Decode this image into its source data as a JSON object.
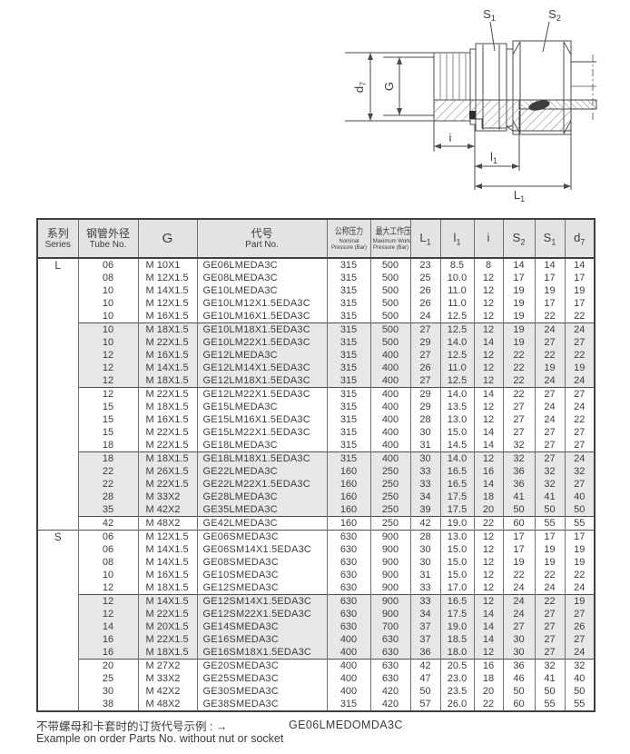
{
  "colors": {
    "header_bg": "#e3e3e3",
    "shaded_row_bg": "#e7e7e7",
    "border_dark": "#3f3f3f",
    "text": "#3c3c3c"
  },
  "drawing": {
    "labels": {
      "s1": {
        "base": "S",
        "sub": "1"
      },
      "s2": {
        "base": "S",
        "sub": "2"
      },
      "d7": {
        "base": "d",
        "sub": "7"
      },
      "g": "G",
      "i": "i",
      "l1": {
        "base": "l",
        "sub": "1"
      },
      "L1": {
        "base": "L",
        "sub": "1"
      }
    }
  },
  "table": {
    "headers": {
      "series": {
        "zh": "系列",
        "en": "Series"
      },
      "tube": {
        "zh": "钢管外径",
        "en": "Tube No."
      },
      "g": "G",
      "part": {
        "zh": "代号",
        "en": "Part No."
      },
      "nominal": {
        "zh": "公称压力",
        "en1": "Nominal",
        "en2": "Pressure (Bar)"
      },
      "max": {
        "zh": "最大工作压力",
        "en1": "Maximum Working",
        "en2": "Pressure (Bar)"
      },
      "dims": [
        {
          "base": "L",
          "sub": "1"
        },
        {
          "base": "l",
          "sub": "1"
        },
        {
          "base": "i",
          "sub": ""
        },
        {
          "base": "S",
          "sub": "2"
        },
        {
          "base": "S",
          "sub": "1"
        },
        {
          "base": "d",
          "sub": "7"
        }
      ]
    },
    "sections": [
      {
        "series": "L",
        "groups": [
          {
            "shaded": false,
            "rows": [
              [
                "06",
                "M 10X1",
                "GE06LMEDA3C",
                "315",
                "500",
                "23",
                "8.5",
                "8",
                "14",
                "14",
                "14"
              ],
              [
                "08",
                "M 12X1.5",
                "GE08LMEDA3C",
                "315",
                "500",
                "25",
                "10.0",
                "12",
                "17",
                "17",
                "17"
              ],
              [
                "10",
                "M 14X1.5",
                "GE10LMEDA3C",
                "315",
                "500",
                "26",
                "11.0",
                "12",
                "19",
                "19",
                "19"
              ],
              [
                "10",
                "M 12X1.5",
                "GE10LM12X1.5EDA3C",
                "315",
                "500",
                "26",
                "11.0",
                "12",
                "19",
                "17",
                "17"
              ],
              [
                "10",
                "M 16X1.5",
                "GE10LM16X1.5EDA3C",
                "315",
                "500",
                "24",
                "12.5",
                "12",
                "19",
                "22",
                "22"
              ]
            ]
          },
          {
            "shaded": true,
            "rows": [
              [
                "10",
                "M 18X1.5",
                "GE10LM18X1.5EDA3C",
                "315",
                "500",
                "27",
                "12.5",
                "12",
                "19",
                "24",
                "24"
              ],
              [
                "10",
                "M 22X1.5",
                "GE10LM22X1.5EDA3C",
                "315",
                "500",
                "29",
                "14.0",
                "14",
                "19",
                "27",
                "27"
              ],
              [
                "12",
                "M 16X1.5",
                "GE12LMEDA3C",
                "315",
                "400",
                "27",
                "12.5",
                "12",
                "22",
                "22",
                "22"
              ],
              [
                "12",
                "M 14X1.5",
                "GE12LM14X1.5EDA3C",
                "315",
                "400",
                "26",
                "11.0",
                "12",
                "22",
                "19",
                "19"
              ],
              [
                "12",
                "M 18X1.5",
                "GE12LM18X1.5EDA3C",
                "315",
                "400",
                "27",
                "12.5",
                "12",
                "22",
                "24",
                "24"
              ]
            ]
          },
          {
            "shaded": false,
            "rows": [
              [
                "12",
                "M 22X1.5",
                "GE12LM22X1.5EDA3C",
                "315",
                "400",
                "29",
                "14.0",
                "14",
                "22",
                "27",
                "27"
              ],
              [
                "15",
                "M 18X1.5",
                "GE15LMEDA3C",
                "315",
                "400",
                "29",
                "13.5",
                "12",
                "27",
                "24",
                "24"
              ],
              [
                "15",
                "M 16X1.5",
                "GE15LM16X1.5EDA3C",
                "315",
                "400",
                "28",
                "13.0",
                "12",
                "27",
                "24",
                "22"
              ],
              [
                "15",
                "M 22X1.5",
                "GE15LM22X1.5EDA3C",
                "315",
                "400",
                "30",
                "15.0",
                "14",
                "27",
                "27",
                "27"
              ],
              [
                "18",
                "M 22X1.5",
                "GE18LMEDA3C",
                "315",
                "400",
                "31",
                "14.5",
                "14",
                "32",
                "27",
                "27"
              ]
            ]
          },
          {
            "shaded": true,
            "rows": [
              [
                "18",
                "M 18X1.5",
                "GE18LM18X1.5EDA3C",
                "315",
                "400",
                "30",
                "14.0",
                "12",
                "32",
                "27",
                "24"
              ],
              [
                "22",
                "M 26X1.5",
                "GE22LMEDA3C",
                "160",
                "250",
                "33",
                "16.5",
                "16",
                "36",
                "32",
                "32"
              ],
              [
                "22",
                "M 22X1.5",
                "GE22LM22X1.5EDA3C",
                "160",
                "250",
                "33",
                "16.5",
                "14",
                "36",
                "32",
                "27"
              ],
              [
                "28",
                "M 33X2",
                "GE28LMEDA3C",
                "160",
                "250",
                "34",
                "17.5",
                "18",
                "41",
                "41",
                "40"
              ],
              [
                "35",
                "M 42X2",
                "GE35LMEDA3C",
                "160",
                "250",
                "39",
                "17.5",
                "20",
                "50",
                "50",
                "50"
              ]
            ]
          },
          {
            "shaded": false,
            "rows": [
              [
                "42",
                "M 48X2",
                "GE42LMEDA3C",
                "160",
                "250",
                "42",
                "19.0",
                "22",
                "60",
                "55",
                "55"
              ]
            ]
          }
        ]
      },
      {
        "series": "S",
        "groups": [
          {
            "shaded": false,
            "rows": [
              [
                "06",
                "M 12X1.5",
                "GE06SMEDA3C",
                "630",
                "900",
                "28",
                "13.0",
                "12",
                "17",
                "17",
                "17"
              ],
              [
                "06",
                "M 14X1.5",
                "GE06SM14X1.5EDA3C",
                "630",
                "900",
                "30",
                "15.0",
                "12",
                "17",
                "19",
                "19"
              ],
              [
                "08",
                "M 14X1.5",
                "GE08SMEDA3C",
                "630",
                "900",
                "30",
                "15.0",
                "12",
                "19",
                "19",
                "19"
              ],
              [
                "10",
                "M 16X1.5",
                "GE10SMEDA3C",
                "630",
                "900",
                "31",
                "15.0",
                "12",
                "22",
                "22",
                "22"
              ],
              [
                "12",
                "M 18X1.5",
                "GE12SMEDA3C",
                "630",
                "900",
                "33",
                "17.0",
                "12",
                "24",
                "24",
                "24"
              ]
            ]
          },
          {
            "shaded": true,
            "rows": [
              [
                "12",
                "M 14X1.5",
                "GE12SM14X1.5EDA3C",
                "630",
                "900",
                "33",
                "16.5",
                "12",
                "24",
                "22",
                "19"
              ],
              [
                "12",
                "M 22X1.5",
                "GE12SM22X1.5EDA3C",
                "630",
                "900",
                "34",
                "17.5",
                "14",
                "24",
                "27",
                "27"
              ],
              [
                "14",
                "M 20X1.5",
                "GE14SMEDA3C",
                "630",
                "700",
                "37",
                "19.0",
                "14",
                "27",
                "27",
                "26"
              ],
              [
                "16",
                "M 22X1.5",
                "GE16SMEDA3C",
                "400",
                "630",
                "37",
                "18.5",
                "14",
                "30",
                "27",
                "27"
              ],
              [
                "16",
                "M 18X1.5",
                "GE16SM18X1.5EDA3C",
                "400",
                "630",
                "36",
                "18.0",
                "12",
                "30",
                "27",
                "24"
              ]
            ]
          },
          {
            "shaded": false,
            "rows": [
              [
                "20",
                "M 27X2",
                "GE20SMEDA3C",
                "400",
                "630",
                "42",
                "20.5",
                "16",
                "36",
                "32",
                "32"
              ],
              [
                "25",
                "M 33X2",
                "GE25SMEDA3C",
                "400",
                "630",
                "47",
                "23.0",
                "18",
                "46",
                "41",
                "40"
              ],
              [
                "30",
                "M 42X2",
                "GE30SMEDA3C",
                "400",
                "420",
                "50",
                "23.5",
                "20",
                "50",
                "50",
                "50"
              ],
              [
                "38",
                "M 48X2",
                "GE38SMEDA3C",
                "315",
                "420",
                "57",
                "26.0",
                "22",
                "60",
                "55",
                "55"
              ]
            ]
          }
        ]
      }
    ]
  },
  "footer": {
    "note_zh": "不带螺母和卡套时的订货代号示例 : →",
    "note_en": "Example on order Parts No. without nut or socket",
    "example_code": "GE06LMEDOMDA3C"
  }
}
